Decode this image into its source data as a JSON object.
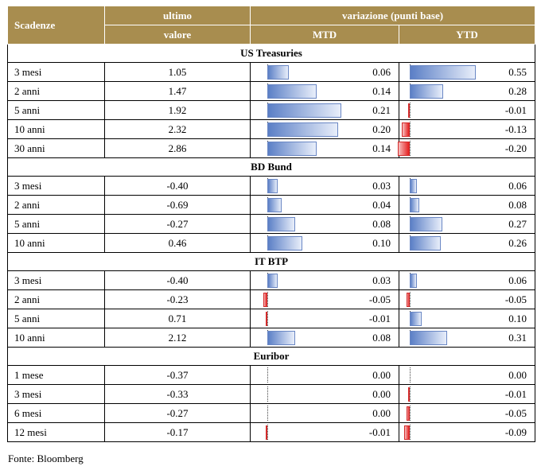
{
  "header": {
    "scadenze": "Scadenze",
    "ultimo": "ultimo",
    "valore": "valore",
    "variazione": "variazione (punti base)",
    "mtd": "MTD",
    "ytd": "YTD"
  },
  "colors": {
    "header_bg": "#a88d4f",
    "positive": "#5b7fc6",
    "negative": "#e52020"
  },
  "scale": {
    "mtd_max": 0.21,
    "ytd_max": 0.55
  },
  "groups": [
    {
      "title": "US Treasuries",
      "rows": [
        {
          "label": "3 mesi",
          "value": "1.05",
          "mtd": 0.06,
          "mtd_label": "0.06",
          "ytd": 0.55,
          "ytd_label": "0.55"
        },
        {
          "label": "2 anni",
          "value": "1.47",
          "mtd": 0.14,
          "mtd_label": "0.14",
          "ytd": 0.28,
          "ytd_label": "0.28"
        },
        {
          "label": "5 anni",
          "value": "1.92",
          "mtd": 0.21,
          "mtd_label": "0.21",
          "ytd": -0.01,
          "ytd_label": "-0.01"
        },
        {
          "label": "10 anni",
          "value": "2.32",
          "mtd": 0.2,
          "mtd_label": "0.20",
          "ytd": -0.13,
          "ytd_label": "-0.13"
        },
        {
          "label": "30 anni",
          "value": "2.86",
          "mtd": 0.14,
          "mtd_label": "0.14",
          "ytd": -0.2,
          "ytd_label": "-0.20"
        }
      ]
    },
    {
      "title": "BD Bund",
      "rows": [
        {
          "label": "3 mesi",
          "value": "-0.40",
          "mtd": 0.03,
          "mtd_label": "0.03",
          "ytd": 0.06,
          "ytd_label": "0.06"
        },
        {
          "label": "2 anni",
          "value": "-0.69",
          "mtd": 0.04,
          "mtd_label": "0.04",
          "ytd": 0.08,
          "ytd_label": "0.08"
        },
        {
          "label": "5 anni",
          "value": "-0.27",
          "mtd": 0.08,
          "mtd_label": "0.08",
          "ytd": 0.27,
          "ytd_label": "0.27"
        },
        {
          "label": "10 anni",
          "value": "0.46",
          "mtd": 0.1,
          "mtd_label": "0.10",
          "ytd": 0.26,
          "ytd_label": "0.26"
        }
      ]
    },
    {
      "title": "IT BTP",
      "rows": [
        {
          "label": "3 mesi",
          "value": "-0.40",
          "mtd": 0.03,
          "mtd_label": "0.03",
          "ytd": 0.06,
          "ytd_label": "0.06"
        },
        {
          "label": "2 anni",
          "value": "-0.23",
          "mtd": -0.05,
          "mtd_label": "-0.05",
          "ytd": -0.05,
          "ytd_label": "-0.05"
        },
        {
          "label": "5 anni",
          "value": "0.71",
          "mtd": -0.01,
          "mtd_label": "-0.01",
          "ytd": 0.1,
          "ytd_label": "0.10"
        },
        {
          "label": "10 anni",
          "value": "2.12",
          "mtd": 0.08,
          "mtd_label": "0.08",
          "ytd": 0.31,
          "ytd_label": "0.31"
        }
      ]
    },
    {
      "title": "Euribor",
      "rows": [
        {
          "label": "1 mese",
          "value": "-0.37",
          "mtd": 0.0,
          "mtd_label": "0.00",
          "ytd": 0.0,
          "ytd_label": "0.00"
        },
        {
          "label": "3 mesi",
          "value": "-0.33",
          "mtd": 0.0,
          "mtd_label": "0.00",
          "ytd": -0.01,
          "ytd_label": "-0.01"
        },
        {
          "label": "6 mesi",
          "value": "-0.27",
          "mtd": 0.0,
          "mtd_label": "0.00",
          "ytd": -0.05,
          "ytd_label": "-0.05"
        },
        {
          "label": "12 mesi",
          "value": "-0.17",
          "mtd": -0.01,
          "mtd_label": "-0.01",
          "ytd": -0.09,
          "ytd_label": "-0.09"
        }
      ]
    }
  ],
  "source": "Fonte: Bloomberg"
}
